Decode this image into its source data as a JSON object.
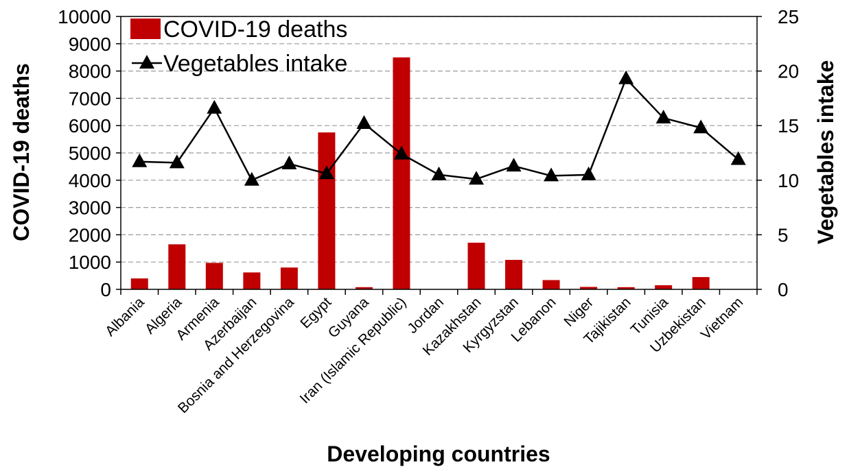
{
  "chart_data": {
    "type": "bar",
    "categories": [
      "Albania",
      "Algeria",
      "Armenia",
      "Azerbaijan",
      "Bosnia and Herzegovina",
      "Egypt",
      "Guyana",
      "Iran (Islamic Republic)",
      "Jordan",
      "Kazakhstan",
      "Kyrgyzstan",
      "Lebanon",
      "Niger",
      "Tajikistan",
      "Tunisia",
      "Uzbekistan",
      "Vietnam"
    ],
    "series": [
      {
        "name": "COVID-19 deaths",
        "type": "bar",
        "axis": "left",
        "color": "#c00000",
        "values": [
          400,
          1650,
          970,
          620,
          800,
          5750,
          80,
          8500,
          0,
          1710,
          1080,
          340,
          90,
          80,
          150,
          450,
          0
        ]
      },
      {
        "name": "Vegetables intake",
        "type": "line",
        "axis": "right",
        "color": "#000000",
        "marker": "triangle",
        "values": [
          11.7,
          11.6,
          16.6,
          10.0,
          11.5,
          10.6,
          15.2,
          12.4,
          10.5,
          10.1,
          11.3,
          10.4,
          10.5,
          19.3,
          15.7,
          14.8,
          11.9
        ]
      }
    ],
    "xlabel": "Developing countries",
    "ylabel": "COVID-19 deaths",
    "y2label": "Vegetables intake",
    "ylim": [
      0,
      10000
    ],
    "y2lim": [
      0,
      25
    ],
    "yticks": [
      "0",
      "1000",
      "2000",
      "3000",
      "4000",
      "5000",
      "6000",
      "7000",
      "8000",
      "9000",
      "10000"
    ],
    "y2ticks": [
      "0",
      "5",
      "10",
      "15",
      "20",
      "25"
    ],
    "grid": "horizontal dashed",
    "legend_position": "top-left"
  }
}
